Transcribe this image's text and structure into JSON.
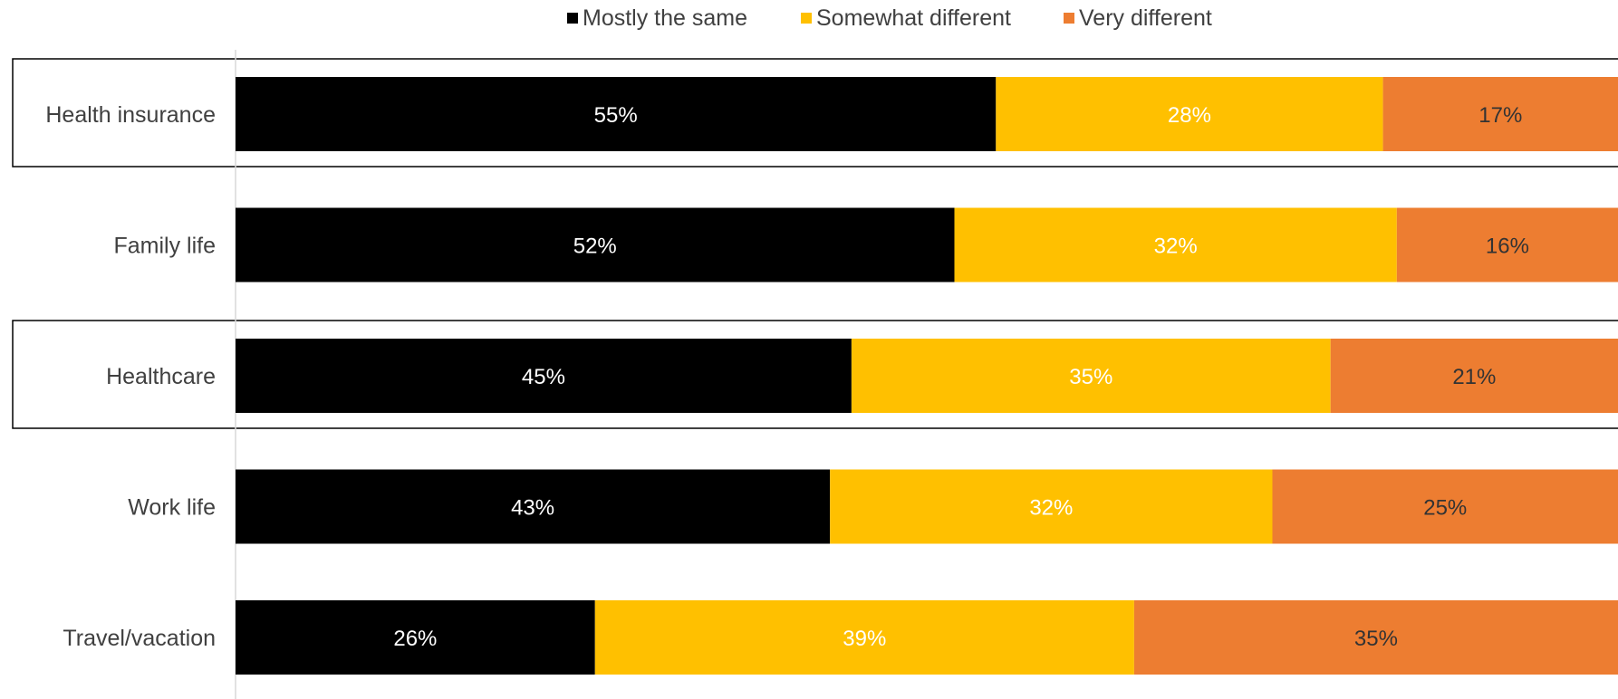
{
  "chart_data": {
    "type": "bar",
    "orientation": "horizontal",
    "stacked": true,
    "title": "",
    "xlabel": "",
    "ylabel": "",
    "categories": [
      "Health insurance",
      "Family life",
      "Healthcare",
      "Work life",
      "Travel/vacation"
    ],
    "series": [
      {
        "name": "Mostly the same",
        "values": [
          55,
          52,
          45,
          43,
          26
        ],
        "labels": [
          "55%",
          "52%",
          "45%",
          "43%",
          "26%"
        ],
        "color": "#000000",
        "label_color": "#ffffff"
      },
      {
        "name": "Somewhat different",
        "values": [
          28,
          32,
          35,
          32,
          39
        ],
        "labels": [
          "28%",
          "32%",
          "35%",
          "32%",
          "39%"
        ],
        "color": "#FFC000",
        "label_color": "#ffffff"
      },
      {
        "name": "Very different",
        "values": [
          17,
          16,
          21,
          25,
          35
        ],
        "labels": [
          "17%",
          "16%",
          "21%",
          "25%",
          "35%"
        ],
        "color": "#ED7D31",
        "label_color": "#333333"
      }
    ],
    "highlighted_categories": [
      "Health insurance",
      "Healthcare"
    ],
    "legend_position": "top-center",
    "grid": false,
    "xlim": [
      0,
      100
    ]
  }
}
